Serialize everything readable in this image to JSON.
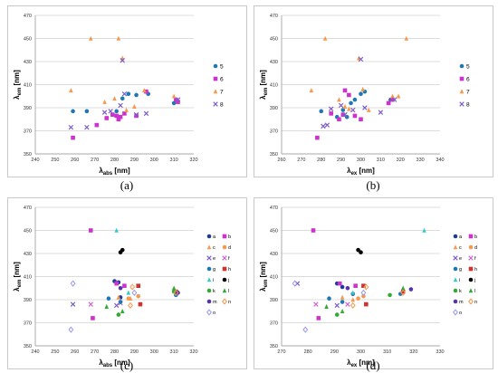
{
  "chart_data": [
    {
      "panel": "a",
      "type": "scatter",
      "caption": "(a)",
      "xlabel": "λabs [nm]",
      "ylabel": "λem [nm]",
      "xlim": [
        240,
        320
      ],
      "ylim": [
        350,
        470
      ],
      "xticks": [
        "240",
        "250",
        "260",
        "270",
        "280",
        "290",
        "300",
        "310",
        "320"
      ],
      "yticks": [
        "350",
        "370",
        "390",
        "410",
        "430",
        "450",
        "470"
      ],
      "series": [
        {
          "name": "5",
          "color": "#1f77b4",
          "marker": "dot",
          "points": [
            [
              259,
              387
            ],
            [
              266,
              387
            ],
            [
              281,
              387
            ],
            [
              284,
              398
            ],
            [
              287,
              402
            ],
            [
              291,
              401
            ],
            [
              297,
              402
            ],
            [
              310,
              394
            ]
          ]
        },
        {
          "name": "6",
          "color": "#cc33cc",
          "marker": "square",
          "points": [
            [
              259,
              364
            ],
            [
              271,
              375
            ],
            [
              276,
              381
            ],
            [
              279,
              384
            ],
            [
              281,
              383
            ],
            [
              282,
              380
            ],
            [
              283,
              382
            ],
            [
              285,
              385
            ],
            [
              291,
              383
            ],
            [
              296,
              404
            ],
            [
              311,
              397
            ],
            [
              312,
              395
            ]
          ]
        },
        {
          "name": "7",
          "color": "#f5994f",
          "marker": "triangle",
          "points": [
            [
              258,
              405
            ],
            [
              268,
              450
            ],
            [
              275,
              395
            ],
            [
              280,
              398
            ],
            [
              282,
              450
            ],
            [
              284,
              433
            ],
            [
              286,
              388
            ],
            [
              290,
              391
            ],
            [
              295,
              405
            ],
            [
              310,
              400
            ]
          ]
        },
        {
          "name": "8",
          "color": "#7a5cc8",
          "marker": "x",
          "points": [
            [
              258,
              373
            ],
            [
              266,
              373
            ],
            [
              275,
              386
            ],
            [
              278,
              387
            ],
            [
              283,
              392
            ],
            [
              284,
              431
            ],
            [
              285,
              402
            ],
            [
              291,
              384
            ],
            [
              296,
              385
            ],
            [
              312,
              397
            ]
          ]
        }
      ]
    },
    {
      "panel": "b",
      "type": "scatter",
      "caption": "(b)",
      "xlabel": "λex [nm]",
      "ylabel": "λem [nm]",
      "xlim": [
        260,
        340
      ],
      "ylim": [
        350,
        470
      ],
      "xticks": [
        "260",
        "270",
        "280",
        "290",
        "300",
        "310",
        "320",
        "330",
        "340"
      ],
      "yticks": [
        "350",
        "370",
        "390",
        "410",
        "430",
        "450",
        "470"
      ],
      "series": [
        {
          "name": "5",
          "color": "#1f77b4",
          "marker": "dot",
          "points": [
            [
              280,
              387
            ],
            [
              288,
              382
            ],
            [
              291,
              388
            ],
            [
              293,
              382
            ],
            [
              295,
              394
            ],
            [
              297,
              397
            ],
            [
              300,
              402
            ],
            [
              302,
              404
            ],
            [
              315,
              397
            ]
          ]
        },
        {
          "name": "6",
          "color": "#cc33cc",
          "marker": "square",
          "points": [
            [
              278,
              364
            ],
            [
              285,
              385
            ],
            [
              289,
              380
            ],
            [
              291,
              384
            ],
            [
              292,
              405
            ],
            [
              294,
              401
            ],
            [
              297,
              383
            ],
            [
              300,
              380
            ],
            [
              314,
              394
            ],
            [
              316,
              397
            ]
          ]
        },
        {
          "name": "7",
          "color": "#f5994f",
          "marker": "triangle",
          "points": [
            [
              275,
              405
            ],
            [
              282,
              450
            ],
            [
              289,
              397
            ],
            [
              292,
              391
            ],
            [
              294,
              389
            ],
            [
              299,
              433
            ],
            [
              301,
              406
            ],
            [
              304,
              388
            ],
            [
              316,
              400
            ],
            [
              319,
              400
            ],
            [
              323,
              450
            ]
          ]
        },
        {
          "name": "8",
          "color": "#7a5cc8",
          "marker": "x",
          "points": [
            [
              281,
              374
            ],
            [
              283,
              375
            ],
            [
              285,
              389
            ],
            [
              290,
              392
            ],
            [
              292,
              384
            ],
            [
              296,
              388
            ],
            [
              300,
              432
            ],
            [
              302,
              390
            ],
            [
              310,
              386
            ],
            [
              317,
              397
            ]
          ]
        }
      ]
    },
    {
      "panel": "c",
      "type": "scatter",
      "caption": "(c)",
      "xlabel": "λabs [nm]",
      "ylabel": "λem [nm]",
      "xlim": [
        240,
        320
      ],
      "ylim": [
        350,
        470
      ],
      "xticks": [
        "240",
        "250",
        "260",
        "270",
        "280",
        "290",
        "300",
        "310",
        "320"
      ],
      "yticks": [
        "350",
        "370",
        "390",
        "410",
        "430",
        "450",
        "470"
      ],
      "series": [
        {
          "name": "a",
          "color": "#1f3b9c",
          "marker": "dot",
          "points": [
            [
              280,
              406
            ],
            [
              282,
              405
            ],
            [
              283,
              392
            ]
          ]
        },
        {
          "name": "b",
          "color": "#cc33cc",
          "marker": "square",
          "points": [
            [
              268,
              450
            ],
            [
              269,
              374
            ],
            [
              281,
              404
            ],
            [
              285,
              402
            ]
          ]
        },
        {
          "name": "c",
          "color": "#f5994f",
          "marker": "triangle",
          "points": [
            [
              282,
              392
            ],
            [
              288,
              391
            ]
          ]
        },
        {
          "name": "d",
          "color": "#f5994f",
          "marker": "dot",
          "points": [
            [
              287,
              391
            ],
            [
              292,
              393
            ]
          ]
        },
        {
          "name": "e",
          "color": "#7a5cc8",
          "marker": "x",
          "points": [
            [
              259,
              386
            ],
            [
              281,
              385
            ]
          ]
        },
        {
          "name": "f",
          "color": "#cc66cc",
          "marker": "x",
          "points": [
            [
              268,
              386
            ],
            [
              283,
              387
            ]
          ]
        },
        {
          "name": "g",
          "color": "#1f77b4",
          "marker": "dot",
          "points": [
            [
              277,
              391
            ],
            [
              283,
              388
            ],
            [
              311,
              394
            ]
          ]
        },
        {
          "name": "h",
          "color": "#cc3333",
          "marker": "square",
          "points": [
            [
              292,
              402
            ],
            [
              293,
              386
            ],
            [
              311,
              397
            ]
          ]
        },
        {
          "name": "i",
          "color": "#33cccc",
          "marker": "triangle",
          "points": [
            [
              281,
              450
            ],
            [
              287,
              396
            ]
          ]
        },
        {
          "name": "j",
          "color": "#000000",
          "marker": "dot",
          "points": [
            [
              283,
              431
            ],
            [
              284,
              433
            ]
          ]
        },
        {
          "name": "k",
          "color": "#33aa33",
          "marker": "dot",
          "points": [
            [
              282,
              377
            ],
            [
              310,
              397
            ]
          ]
        },
        {
          "name": "l",
          "color": "#33aa33",
          "marker": "triangle",
          "points": [
            [
              276,
              384
            ],
            [
              284,
              380
            ],
            [
              310,
              400
            ]
          ]
        },
        {
          "name": "m",
          "color": "#5533aa",
          "marker": "dot",
          "points": [
            [
              283,
              400
            ],
            [
              312,
              396
            ]
          ]
        },
        {
          "name": "n",
          "color": "#f5994f",
          "marker": "diamond",
          "points": [
            [
              288,
              385
            ],
            [
              289,
              401
            ],
            [
              311,
              396
            ]
          ]
        },
        {
          "name": "o",
          "color": "#9999ee",
          "marker": "diamond",
          "points": [
            [
              258,
              364
            ],
            [
              259,
              404
            ],
            [
              290,
              396
            ]
          ]
        }
      ]
    },
    {
      "panel": "d",
      "type": "scatter",
      "caption": "(d)",
      "xlabel": "λex [nm]",
      "ylabel": "λem [nm]",
      "xlim": [
        270,
        330
      ],
      "ylim": [
        350,
        470
      ],
      "xticks": [
        "270",
        "280",
        "290",
        "300",
        "310",
        "320",
        "330"
      ],
      "yticks": [
        "350",
        "370",
        "390",
        "410",
        "430",
        "450",
        "470"
      ],
      "series": [
        {
          "name": "a",
          "color": "#1f3b9c",
          "marker": "dot",
          "points": [
            [
              291,
              404
            ],
            [
              293,
              401
            ],
            [
              297,
              395
            ]
          ]
        },
        {
          "name": "b",
          "color": "#cc33cc",
          "marker": "square",
          "points": [
            [
              282,
              450
            ],
            [
              284,
              374
            ],
            [
              292,
              404
            ],
            [
              298,
              402
            ]
          ]
        },
        {
          "name": "c",
          "color": "#f5994f",
          "marker": "triangle",
          "points": [
            [
              293,
              392
            ],
            [
              297,
              390
            ]
          ]
        },
        {
          "name": "d",
          "color": "#f5994f",
          "marker": "dot",
          "points": [
            [
              299,
              391
            ],
            [
              301,
              393
            ]
          ]
        },
        {
          "name": "e",
          "color": "#7a5cc8",
          "marker": "x",
          "points": [
            [
              276,
              404
            ],
            [
              291,
              385
            ]
          ]
        },
        {
          "name": "f",
          "color": "#cc66cc",
          "marker": "x",
          "points": [
            [
              283,
              386
            ],
            [
              295,
              386
            ]
          ]
        },
        {
          "name": "g",
          "color": "#1f77b4",
          "marker": "dot",
          "points": [
            [
              288,
              391
            ],
            [
              293,
              388
            ],
            [
              315,
              395
            ]
          ]
        },
        {
          "name": "h",
          "color": "#cc3333",
          "marker": "square",
          "points": [
            [
              301,
              402
            ],
            [
              302,
              386
            ],
            [
              316,
              397
            ]
          ]
        },
        {
          "name": "i",
          "color": "#33cccc",
          "marker": "triangle",
          "points": [
            [
              324,
              450
            ],
            [
              297,
              396
            ]
          ]
        },
        {
          "name": "j",
          "color": "#000000",
          "marker": "dot",
          "points": [
            [
              299,
              433
            ],
            [
              300,
              431
            ]
          ]
        },
        {
          "name": "k",
          "color": "#33aa33",
          "marker": "dot",
          "points": [
            [
              291,
              377
            ],
            [
              311,
              394
            ]
          ]
        },
        {
          "name": "l",
          "color": "#33aa33",
          "marker": "triangle",
          "points": [
            [
              287,
              384
            ],
            [
              293,
              380
            ],
            [
              316,
              400
            ]
          ]
        },
        {
          "name": "m",
          "color": "#5533aa",
          "marker": "dot",
          "points": [
            [
              295,
              400
            ],
            [
              319,
              399
            ]
          ]
        },
        {
          "name": "n",
          "color": "#f5994f",
          "marker": "diamond",
          "points": [
            [
              297,
              385
            ],
            [
              302,
              401
            ],
            [
              316,
              396
            ]
          ]
        },
        {
          "name": "o",
          "color": "#9999ee",
          "marker": "diamond",
          "points": [
            [
              279,
              364
            ],
            [
              275,
              404
            ],
            [
              301,
              396
            ]
          ]
        }
      ]
    }
  ]
}
